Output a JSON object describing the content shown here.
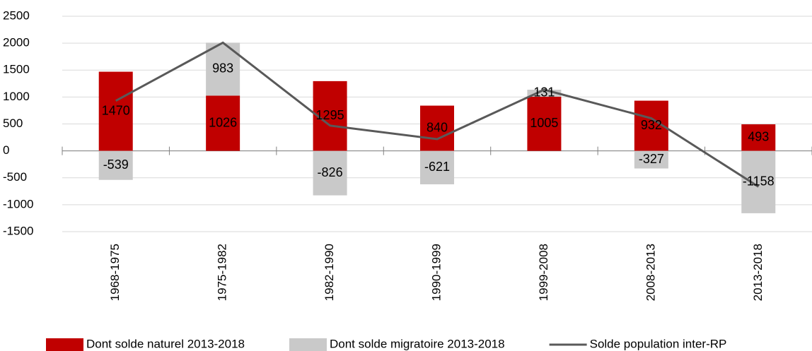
{
  "chart_data": {
    "type": "bar",
    "categories": [
      "1968-1975",
      "1975-1982",
      "1982-1990",
      "1990-1999",
      "1999-2008",
      "2008-2013",
      "2013-2018"
    ],
    "series": [
      {
        "name": "Dont solde naturel 2013-2018",
        "color": "#c00000",
        "type": "bar",
        "values": [
          1470,
          1026,
          1295,
          840,
          1005,
          932,
          493
        ]
      },
      {
        "name": "Dont solde migratoire 2013-2018",
        "color": "#c9c9c9",
        "type": "bar",
        "values": [
          -539,
          983,
          -826,
          -621,
          131,
          -327,
          -1158
        ]
      },
      {
        "name": "Solde population inter-RP",
        "color": "#595959",
        "type": "line",
        "values": [
          931,
          2009,
          469,
          219,
          1136,
          605,
          -665
        ]
      }
    ],
    "stacked": true,
    "ylim": [
      -1500,
      2500
    ],
    "yticks": [
      -1500,
      -1000,
      -500,
      0,
      500,
      1000,
      1500,
      2000,
      2500
    ],
    "grid": true,
    "legend": "bottom"
  }
}
